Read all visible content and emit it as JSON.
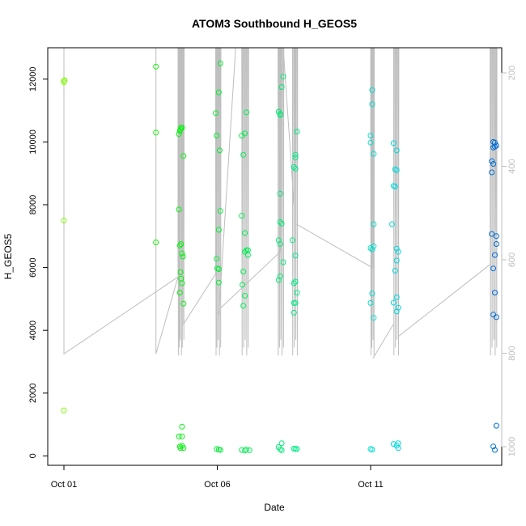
{
  "chart_data": {
    "type": "scatter",
    "title": "ATOM3 Southbound H_GEOS5",
    "xlabel": "Date",
    "ylabel": "H_GEOS5",
    "x_ticks": [
      "Oct 01",
      "Oct 06",
      "Oct 11"
    ],
    "y_ticks": [
      0,
      2000,
      4000,
      6000,
      8000,
      10000,
      12000
    ],
    "y_right_ticks": [
      200,
      400,
      600,
      800,
      1000
    ],
    "ylim": [
      -300,
      13000
    ],
    "y_right_lim": [
      1010,
      160
    ],
    "grid": false,
    "legend": "none",
    "colors": {
      "line": "#bebebe",
      "axis": "#000000",
      "right_axis": "#bebebe",
      "points_start": "#7cfc00",
      "points_end": "#1e90ff"
    },
    "x_unit": "days since Oct 01",
    "series": [
      {
        "values": [
          {
            "x": 0.0,
            "y": 11950
          },
          {
            "x": 0.0,
            "y": 11900
          },
          {
            "x": 0.02,
            "y": 11960
          },
          {
            "x": 0.0,
            "y": 7500
          },
          {
            "x": 0.0,
            "y": 1450
          },
          {
            "x": 3.0,
            "y": 12400
          },
          {
            "x": 3.0,
            "y": 10300
          },
          {
            "x": 3.0,
            "y": 6800
          },
          {
            "x": 3.75,
            "y": 7850
          },
          {
            "x": 3.78,
            "y": 10350
          },
          {
            "x": 3.8,
            "y": 10400
          },
          {
            "x": 3.82,
            "y": 10450
          },
          {
            "x": 3.85,
            "y": 10450
          },
          {
            "x": 3.9,
            "y": 9550
          },
          {
            "x": 3.78,
            "y": 6700
          },
          {
            "x": 3.82,
            "y": 6750
          },
          {
            "x": 3.85,
            "y": 6450
          },
          {
            "x": 3.88,
            "y": 6350
          },
          {
            "x": 3.8,
            "y": 5850
          },
          {
            "x": 3.82,
            "y": 5650
          },
          {
            "x": 3.85,
            "y": 5500
          },
          {
            "x": 3.9,
            "y": 4850
          },
          {
            "x": 3.78,
            "y": 5200
          },
          {
            "x": 3.75,
            "y": 10250
          },
          {
            "x": 3.75,
            "y": 620
          },
          {
            "x": 3.85,
            "y": 620
          },
          {
            "x": 3.85,
            "y": 930
          },
          {
            "x": 3.78,
            "y": 300
          },
          {
            "x": 3.8,
            "y": 250
          },
          {
            "x": 3.85,
            "y": 320
          },
          {
            "x": 3.9,
            "y": 250
          },
          {
            "x": 4.95,
            "y": 10920
          },
          {
            "x": 5.05,
            "y": 11580
          },
          {
            "x": 5.1,
            "y": 12500
          },
          {
            "x": 4.98,
            "y": 10200
          },
          {
            "x": 5.08,
            "y": 9730
          },
          {
            "x": 5.05,
            "y": 7200
          },
          {
            "x": 5.1,
            "y": 7800
          },
          {
            "x": 4.98,
            "y": 6280
          },
          {
            "x": 5.0,
            "y": 5970
          },
          {
            "x": 5.05,
            "y": 5950
          },
          {
            "x": 5.05,
            "y": 5520
          },
          {
            "x": 4.98,
            "y": 220
          },
          {
            "x": 5.05,
            "y": 200
          },
          {
            "x": 5.1,
            "y": 190
          },
          {
            "x": 5.8,
            "y": 10200
          },
          {
            "x": 5.9,
            "y": 10270
          },
          {
            "x": 5.95,
            "y": 10940
          },
          {
            "x": 5.85,
            "y": 9590
          },
          {
            "x": 5.8,
            "y": 7650
          },
          {
            "x": 5.9,
            "y": 7100
          },
          {
            "x": 5.95,
            "y": 6550
          },
          {
            "x": 6.0,
            "y": 6550
          },
          {
            "x": 5.9,
            "y": 6500
          },
          {
            "x": 5.85,
            "y": 5870
          },
          {
            "x": 6.0,
            "y": 6400
          },
          {
            "x": 5.82,
            "y": 5450
          },
          {
            "x": 5.9,
            "y": 5100
          },
          {
            "x": 5.85,
            "y": 4780
          },
          {
            "x": 5.8,
            "y": 190
          },
          {
            "x": 5.9,
            "y": 170
          },
          {
            "x": 5.95,
            "y": 200
          },
          {
            "x": 6.05,
            "y": 180
          },
          {
            "x": 7.0,
            "y": 10960
          },
          {
            "x": 7.05,
            "y": 10900
          },
          {
            "x": 7.1,
            "y": 11750
          },
          {
            "x": 7.15,
            "y": 12080
          },
          {
            "x": 7.05,
            "y": 10850
          },
          {
            "x": 7.05,
            "y": 8350
          },
          {
            "x": 7.05,
            "y": 7450
          },
          {
            "x": 7.1,
            "y": 7400
          },
          {
            "x": 7.0,
            "y": 6870
          },
          {
            "x": 7.05,
            "y": 6750
          },
          {
            "x": 7.15,
            "y": 6170
          },
          {
            "x": 7.05,
            "y": 5720
          },
          {
            "x": 7.0,
            "y": 5600
          },
          {
            "x": 7.0,
            "y": 280
          },
          {
            "x": 7.05,
            "y": 210
          },
          {
            "x": 7.1,
            "y": 400
          },
          {
            "x": 7.1,
            "y": 180
          },
          {
            "x": 7.6,
            "y": 10330
          },
          {
            "x": 7.55,
            "y": 9590
          },
          {
            "x": 7.55,
            "y": 9500
          },
          {
            "x": 7.5,
            "y": 9200
          },
          {
            "x": 7.55,
            "y": 9150
          },
          {
            "x": 7.45,
            "y": 6870
          },
          {
            "x": 7.55,
            "y": 6380
          },
          {
            "x": 7.55,
            "y": 5550
          },
          {
            "x": 7.5,
            "y": 5500
          },
          {
            "x": 7.6,
            "y": 5200
          },
          {
            "x": 7.5,
            "y": 4870
          },
          {
            "x": 7.55,
            "y": 4870
          },
          {
            "x": 7.5,
            "y": 4560
          },
          {
            "x": 7.5,
            "y": 230
          },
          {
            "x": 7.55,
            "y": 220
          },
          {
            "x": 7.6,
            "y": 220
          },
          {
            "x": 10.0,
            "y": 10200
          },
          {
            "x": 10.05,
            "y": 11650
          },
          {
            "x": 10.05,
            "y": 11200
          },
          {
            "x": 10.0,
            "y": 9980
          },
          {
            "x": 10.1,
            "y": 9620
          },
          {
            "x": 10.1,
            "y": 7380
          },
          {
            "x": 10.0,
            "y": 6620
          },
          {
            "x": 10.1,
            "y": 6680
          },
          {
            "x": 10.05,
            "y": 6580
          },
          {
            "x": 10.05,
            "y": 5170
          },
          {
            "x": 10.0,
            "y": 4870
          },
          {
            "x": 10.1,
            "y": 4400
          },
          {
            "x": 10.0,
            "y": 220
          },
          {
            "x": 10.05,
            "y": 200
          },
          {
            "x": 10.75,
            "y": 9960
          },
          {
            "x": 10.85,
            "y": 9730
          },
          {
            "x": 10.8,
            "y": 9130
          },
          {
            "x": 10.85,
            "y": 9100
          },
          {
            "x": 10.75,
            "y": 8600
          },
          {
            "x": 10.8,
            "y": 8580
          },
          {
            "x": 10.7,
            "y": 7380
          },
          {
            "x": 10.85,
            "y": 6600
          },
          {
            "x": 10.9,
            "y": 6500
          },
          {
            "x": 10.85,
            "y": 6220
          },
          {
            "x": 10.8,
            "y": 5900
          },
          {
            "x": 10.85,
            "y": 5050
          },
          {
            "x": 10.75,
            "y": 4880
          },
          {
            "x": 10.9,
            "y": 4720
          },
          {
            "x": 10.85,
            "y": 4600
          },
          {
            "x": 10.75,
            "y": 380
          },
          {
            "x": 10.85,
            "y": 330
          },
          {
            "x": 10.9,
            "y": 400
          },
          {
            "x": 10.9,
            "y": 250
          },
          {
            "x": 13.95,
            "y": 9390
          },
          {
            "x": 14.0,
            "y": 9300
          },
          {
            "x": 13.95,
            "y": 9030
          },
          {
            "x": 14.05,
            "y": 9980
          },
          {
            "x": 14.0,
            "y": 10000
          },
          {
            "x": 14.05,
            "y": 9850
          },
          {
            "x": 14.1,
            "y": 9880
          },
          {
            "x": 14.0,
            "y": 9820
          },
          {
            "x": 13.95,
            "y": 7070
          },
          {
            "x": 14.1,
            "y": 7000
          },
          {
            "x": 14.1,
            "y": 6750
          },
          {
            "x": 14.05,
            "y": 6400
          },
          {
            "x": 14.0,
            "y": 5970
          },
          {
            "x": 14.05,
            "y": 5200
          },
          {
            "x": 14.0,
            "y": 4500
          },
          {
            "x": 14.1,
            "y": 4420
          },
          {
            "x": 14.1,
            "y": 960
          },
          {
            "x": 14.0,
            "y": 300
          },
          {
            "x": 14.05,
            "y": 190
          }
        ]
      }
    ]
  }
}
